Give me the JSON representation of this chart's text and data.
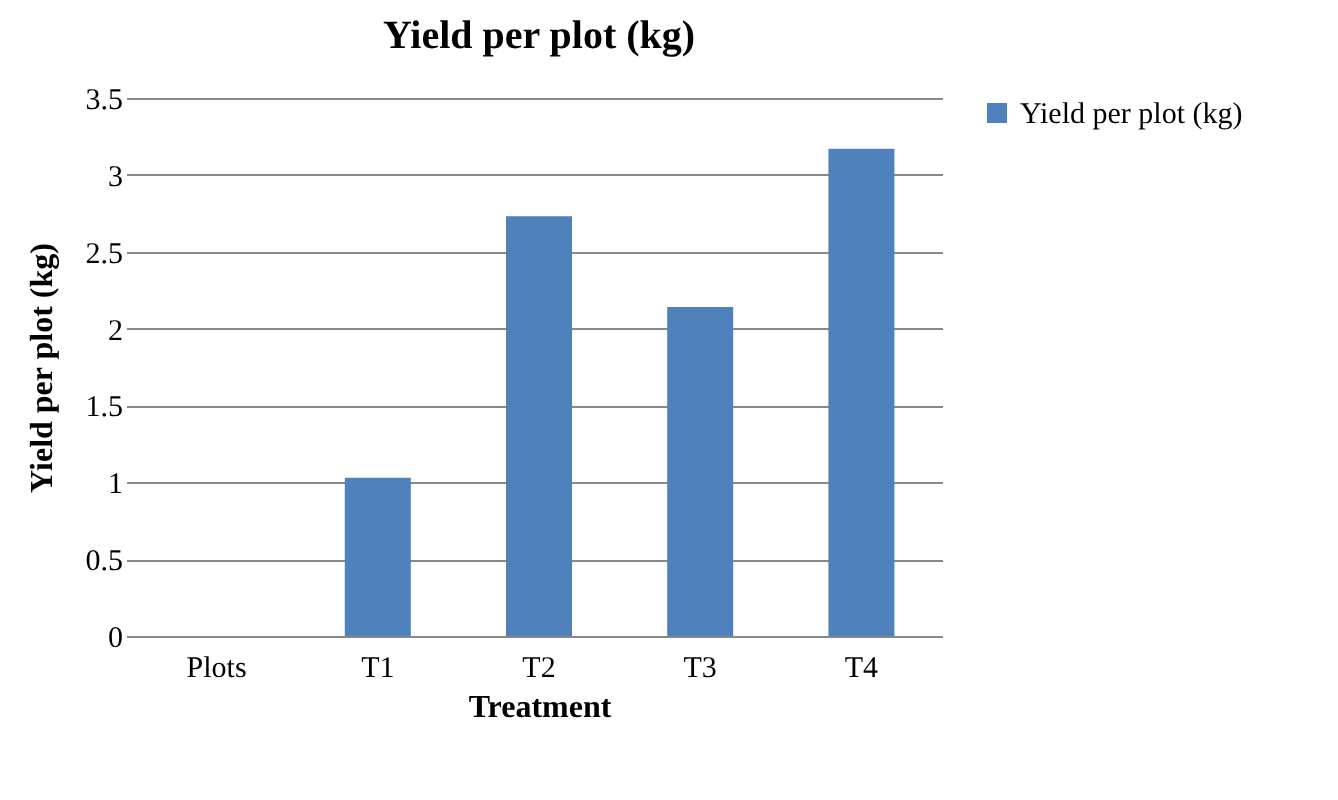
{
  "chart_data": {
    "type": "bar",
    "title": "Yield per plot (kg)",
    "xlabel": "Treatment",
    "ylabel": "Yield per plot (kg)",
    "categories": [
      "Plots",
      "T1",
      "T2",
      "T3",
      "T4"
    ],
    "series": [
      {
        "name": "Yield per plot (kg)",
        "color": "#4f81bd",
        "values": [
          null,
          1.03,
          2.73,
          2.14,
          3.17
        ]
      }
    ],
    "ylim": [
      0,
      3.5
    ],
    "yticks": [
      0,
      0.5,
      1,
      1.5,
      2,
      2.5,
      3,
      3.5
    ],
    "grid": "y",
    "legend": "right"
  }
}
